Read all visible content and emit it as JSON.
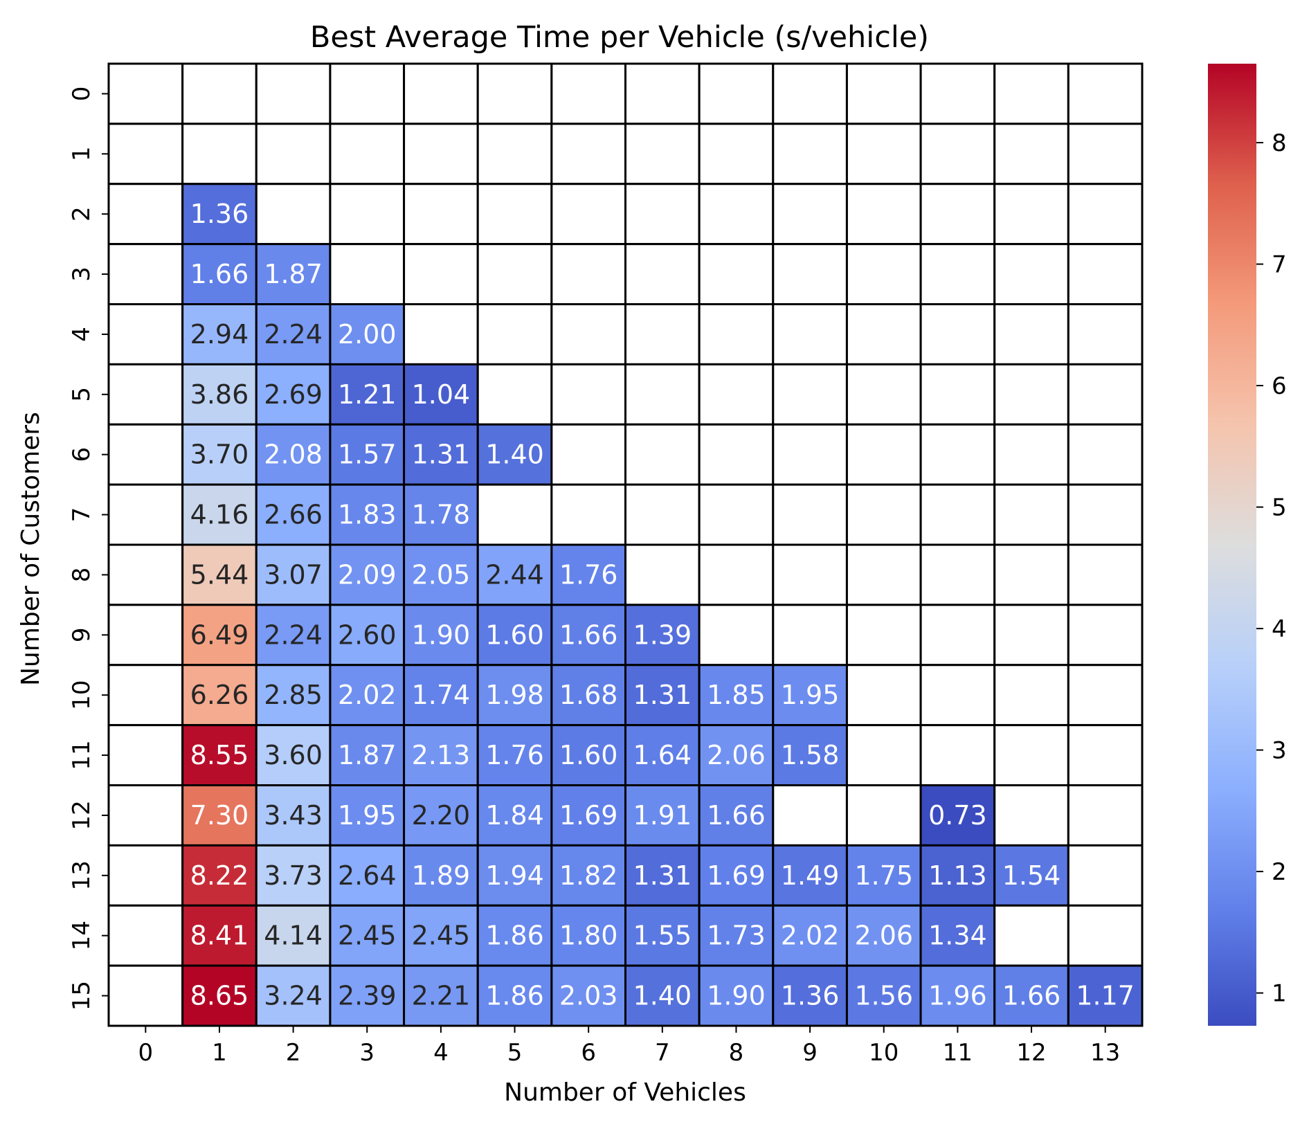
{
  "chart_data": {
    "type": "heatmap",
    "title": "Best Average Time per Vehicle (s/vehicle)",
    "xlabel": "Number of Vehicles",
    "ylabel": "Number of Customers",
    "x_categories": [
      "0",
      "1",
      "2",
      "3",
      "4",
      "5",
      "6",
      "7",
      "8",
      "9",
      "10",
      "11",
      "12",
      "13"
    ],
    "y_categories": [
      "0",
      "1",
      "2",
      "3",
      "4",
      "5",
      "6",
      "7",
      "8",
      "9",
      "10",
      "11",
      "12",
      "13",
      "14",
      "15"
    ],
    "values": [
      [
        null,
        null,
        null,
        null,
        null,
        null,
        null,
        null,
        null,
        null,
        null,
        null,
        null,
        null
      ],
      [
        null,
        null,
        null,
        null,
        null,
        null,
        null,
        null,
        null,
        null,
        null,
        null,
        null,
        null
      ],
      [
        null,
        1.36,
        null,
        null,
        null,
        null,
        null,
        null,
        null,
        null,
        null,
        null,
        null,
        null
      ],
      [
        null,
        1.66,
        1.87,
        null,
        null,
        null,
        null,
        null,
        null,
        null,
        null,
        null,
        null,
        null
      ],
      [
        null,
        2.94,
        2.24,
        2.0,
        null,
        null,
        null,
        null,
        null,
        null,
        null,
        null,
        null,
        null
      ],
      [
        null,
        3.86,
        2.69,
        1.21,
        1.04,
        null,
        null,
        null,
        null,
        null,
        null,
        null,
        null,
        null
      ],
      [
        null,
        3.7,
        2.08,
        1.57,
        1.31,
        1.4,
        null,
        null,
        null,
        null,
        null,
        null,
        null,
        null
      ],
      [
        null,
        4.16,
        2.66,
        1.83,
        1.78,
        null,
        null,
        null,
        null,
        null,
        null,
        null,
        null,
        null
      ],
      [
        null,
        5.44,
        3.07,
        2.09,
        2.05,
        2.44,
        1.76,
        null,
        null,
        null,
        null,
        null,
        null,
        null
      ],
      [
        null,
        6.49,
        2.24,
        2.6,
        1.9,
        1.6,
        1.66,
        1.39,
        null,
        null,
        null,
        null,
        null,
        null
      ],
      [
        null,
        6.26,
        2.85,
        2.02,
        1.74,
        1.98,
        1.68,
        1.31,
        1.85,
        1.95,
        null,
        null,
        null,
        null
      ],
      [
        null,
        8.55,
        3.6,
        1.87,
        2.13,
        1.76,
        1.6,
        1.64,
        2.06,
        1.58,
        null,
        null,
        null,
        null
      ],
      [
        null,
        7.3,
        3.43,
        1.95,
        2.2,
        1.84,
        1.69,
        1.91,
        1.66,
        null,
        null,
        0.73,
        null,
        null
      ],
      [
        null,
        8.22,
        3.73,
        2.64,
        1.89,
        1.94,
        1.82,
        1.31,
        1.69,
        1.49,
        1.75,
        1.13,
        1.54,
        null
      ],
      [
        null,
        8.41,
        4.14,
        2.45,
        2.45,
        1.86,
        1.8,
        1.55,
        1.73,
        2.02,
        2.06,
        1.34,
        null,
        null
      ],
      [
        null,
        8.65,
        3.24,
        2.39,
        2.21,
        1.86,
        2.03,
        1.4,
        1.9,
        1.36,
        1.56,
        1.96,
        1.66,
        1.17
      ]
    ],
    "vmin": 0.73,
    "vmax": 8.65,
    "colormap": "coolwarm",
    "colorbar_ticks": [
      "1",
      "2",
      "3",
      "4",
      "5",
      "6",
      "7",
      "8"
    ],
    "grid_color": "#000000",
    "missing_color": "#ffffff"
  }
}
